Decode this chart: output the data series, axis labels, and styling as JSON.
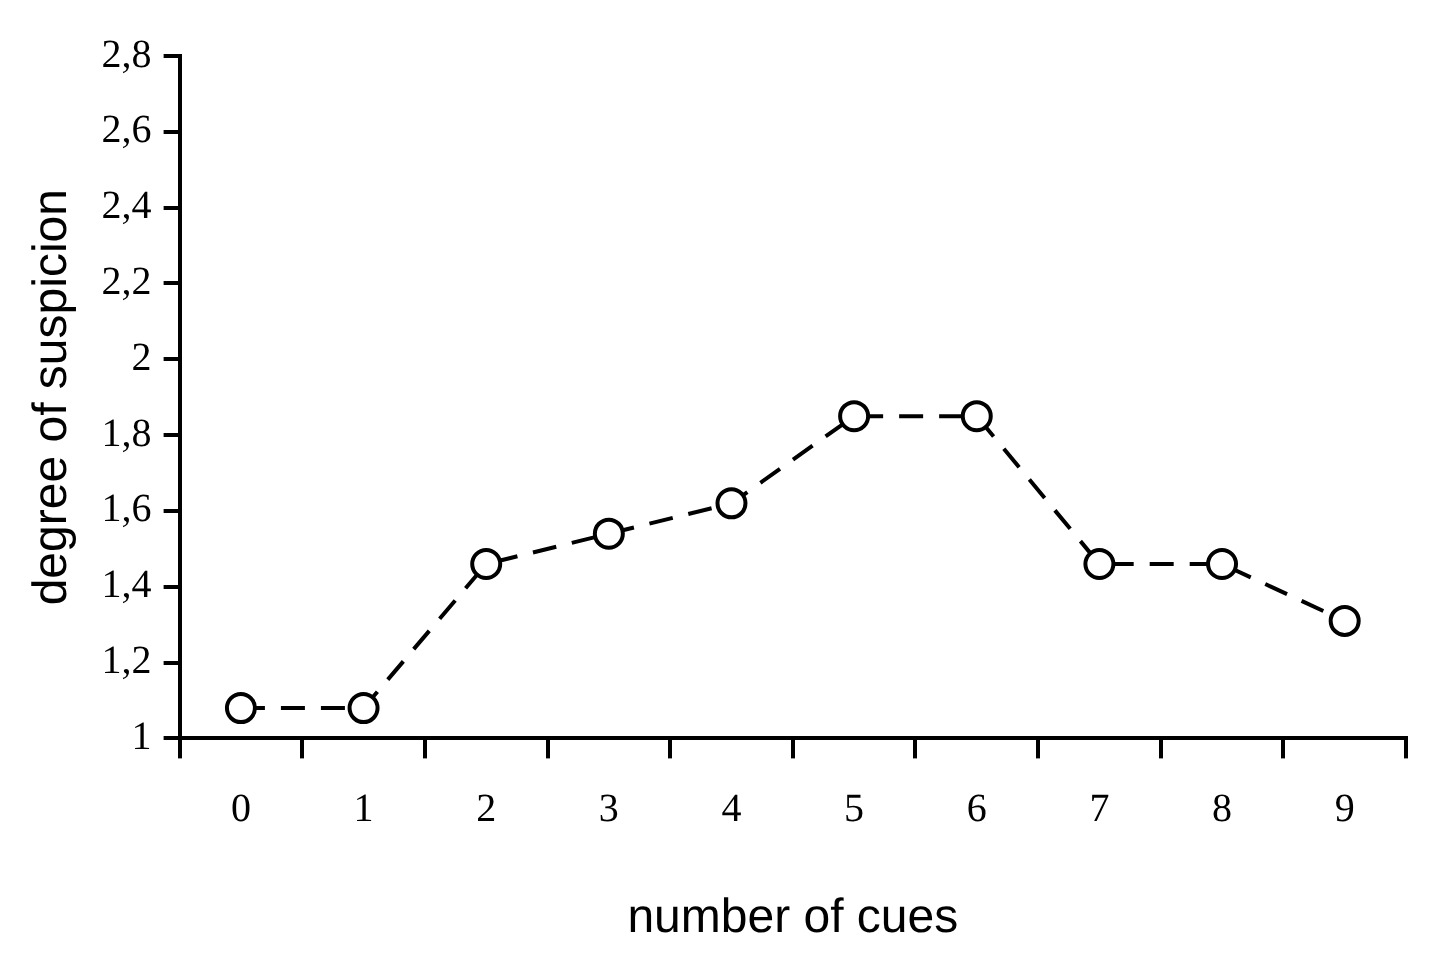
{
  "chart_data": {
    "type": "line",
    "xlabel": "number of cues",
    "ylabel": "degree of suspicion",
    "categories": [
      "0",
      "1",
      "2",
      "3",
      "4",
      "5",
      "6",
      "7",
      "8",
      "9"
    ],
    "series": [
      {
        "color": "#000000",
        "values": [
          1.08,
          1.08,
          1.46,
          1.54,
          1.62,
          1.85,
          1.85,
          1.46,
          1.46,
          1.31
        ]
      }
    ],
    "ylim": [
      1,
      2.8
    ],
    "yticks": [
      1,
      {
        "value": 1.2,
        "label": "1,2"
      },
      {
        "value": 1.4,
        "label": "1,4"
      },
      {
        "value": 1.6,
        "label": "1,6"
      },
      {
        "value": 1.8,
        "label": "1,8"
      },
      2,
      {
        "value": 2.2,
        "label": "2,2"
      },
      {
        "value": 2.4,
        "label": "2,4"
      },
      {
        "value": 2.6,
        "label": "2,6"
      },
      {
        "value": 2.8,
        "label": "2,8"
      }
    ],
    "grid": false,
    "legend": false,
    "marker": "circle",
    "line_style": "dashed"
  }
}
